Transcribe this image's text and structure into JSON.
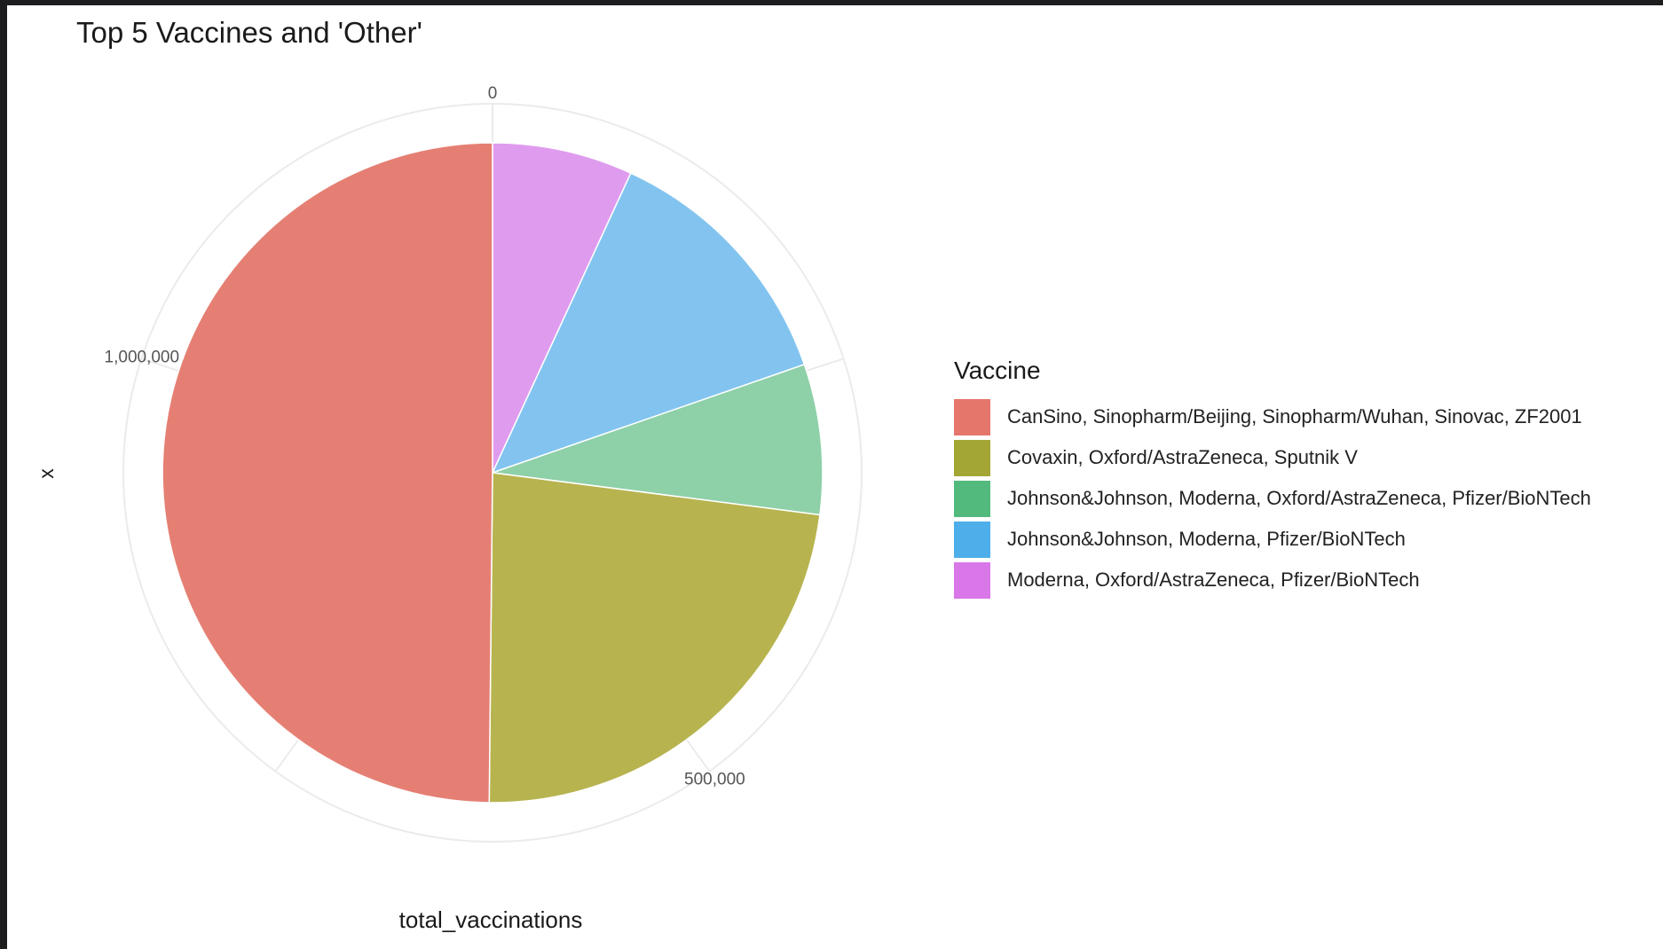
{
  "chart_data": {
    "type": "pie",
    "title": "Top 5 Vaccines and 'Other'",
    "xlabel": "total_vaccinations",
    "ylabel": "x",
    "radial_ticks": [
      "0",
      "500,000",
      "1,000,000"
    ],
    "total": 1250000,
    "legend_title": "Vaccine",
    "legend_position": "right",
    "grid": true,
    "series": [
      {
        "name": "CanSino, Sinopharm/Beijing, Sinopharm/Wuhan, Sinovac, ZF2001",
        "value": 623000,
        "color": "#E57F73"
      },
      {
        "name": "Covaxin, Oxford/AstraZeneca, Sputnik V",
        "value": 289000,
        "color": "#B7B450"
      },
      {
        "name": "Johnson&Johnson, Moderna, Oxford/AstraZeneca, Pfizer/BioNTech",
        "value": 92000,
        "color": "#8ED0A8"
      },
      {
        "name": "Johnson&Johnson, Moderna, Pfizer/BioNTech",
        "value": 160000,
        "color": "#82C4EF"
      },
      {
        "name": "Moderna, Oxford/AstraZeneca, Pfizer/BioNTech",
        "value": 86000,
        "color": "#DF9CEF"
      }
    ],
    "legend_colors": [
      "#E5766B",
      "#A3A535",
      "#53BA7D",
      "#4EAEE9",
      "#D977E9"
    ]
  }
}
